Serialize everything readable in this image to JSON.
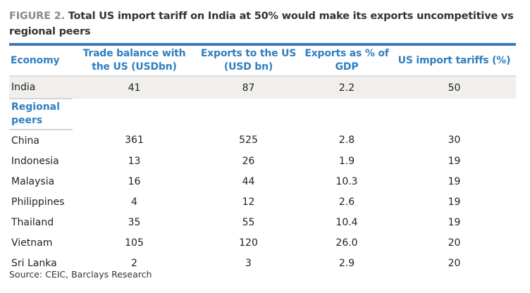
{
  "title": {
    "figure_label": "FIGURE 2.",
    "text": "Total US import tariff on India at 50% would make its exports uncompetitive vs regional peers"
  },
  "table": {
    "headers": [
      "Economy",
      "Trade balance with the US (USDbn)",
      "Exports to the US (USD bn)",
      "Exports as % of GDP",
      "US import tariffs (%)"
    ],
    "highlight_row": {
      "economy": "India",
      "trade_balance": "41",
      "exports_to_us": "87",
      "exports_pct_gdp": "2.2",
      "us_tariff": "50"
    },
    "group_label": "Regional peers",
    "rows": [
      {
        "economy": "China",
        "trade_balance": "361",
        "exports_to_us": "525",
        "exports_pct_gdp": "2.8",
        "us_tariff": "30"
      },
      {
        "economy": "Indonesia",
        "trade_balance": "13",
        "exports_to_us": "26",
        "exports_pct_gdp": "1.9",
        "us_tariff": "19"
      },
      {
        "economy": "Malaysia",
        "trade_balance": "16",
        "exports_to_us": "44",
        "exports_pct_gdp": "10.3",
        "us_tariff": "19"
      },
      {
        "economy": "Philippines",
        "trade_balance": "4",
        "exports_to_us": "12",
        "exports_pct_gdp": "2.6",
        "us_tariff": "19"
      },
      {
        "economy": "Thailand",
        "trade_balance": "35",
        "exports_to_us": "55",
        "exports_pct_gdp": "10.4",
        "us_tariff": "19"
      },
      {
        "economy": "Vietnam",
        "trade_balance": "105",
        "exports_to_us": "120",
        "exports_pct_gdp": "26.0",
        "us_tariff": "20"
      },
      {
        "economy": "Sri Lanka",
        "trade_balance": "2",
        "exports_to_us": "3",
        "exports_pct_gdp": "2.9",
        "us_tariff": "20"
      }
    ]
  },
  "source": "Source: CEIC, Barclays Research",
  "colors": {
    "accent_blue": "#2f7fc0",
    "rule_blue": "#3a7ab5",
    "highlight_bg": "#f0efed"
  }
}
